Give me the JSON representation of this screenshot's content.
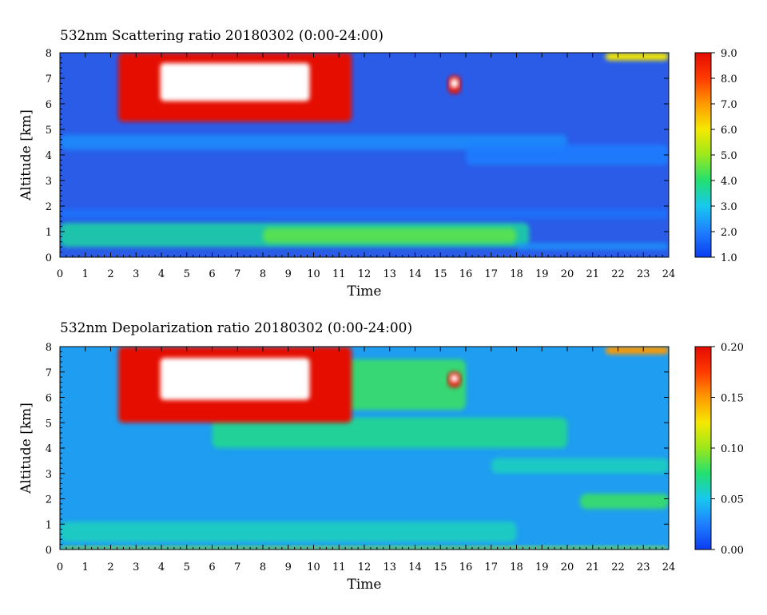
{
  "chart_data": [
    {
      "type": "heatmap",
      "title": "532nm Scattering ratio  20180302 (0:00-24:00)",
      "xlabel": "Time",
      "ylabel": "Altitude [km]",
      "xlim": [
        0,
        24
      ],
      "ylim": [
        0,
        8
      ],
      "x_ticks": [
        "0",
        "1",
        "2",
        "3",
        "4",
        "5",
        "6",
        "7",
        "8",
        "9",
        "10",
        "11",
        "12",
        "13",
        "14",
        "15",
        "16",
        "17",
        "18",
        "19",
        "20",
        "21",
        "22",
        "23",
        "24"
      ],
      "y_ticks": [
        "0",
        "1",
        "2",
        "3",
        "4",
        "5",
        "6",
        "7",
        "8"
      ],
      "colorbar": {
        "min": 1.0,
        "max": 9.0,
        "ticks": [
          "1.0",
          "2.0",
          "3.0",
          "4.0",
          "5.0",
          "6.0",
          "7.0",
          "8.0",
          "9.0"
        ]
      },
      "colormap": [
        "#0a3cf0",
        "#1f7fff",
        "#17c8ee",
        "#22e070",
        "#9be81c",
        "#f5e800",
        "#ff9a00",
        "#ff3b00",
        "#e40a00"
      ],
      "background_color": "#2a5ce8",
      "saturated_color": "#ffffff",
      "features": [
        {
          "kind": "band",
          "x": [
            0,
            18.5
          ],
          "y": [
            0.4,
            1.35
          ],
          "value": 3.6
        },
        {
          "kind": "band",
          "x": [
            8,
            18
          ],
          "y": [
            0.55,
            1.15
          ],
          "value": 4.5
        },
        {
          "kind": "band",
          "x": [
            18,
            24
          ],
          "y": [
            0.3,
            0.55
          ],
          "value": 2.3
        },
        {
          "kind": "band",
          "x": [
            0,
            24
          ],
          "y": [
            1.5,
            1.9
          ],
          "value": 1.8
        },
        {
          "kind": "band",
          "x": [
            0,
            20
          ],
          "y": [
            4.2,
            4.8
          ],
          "value": 2.2
        },
        {
          "kind": "band",
          "x": [
            16,
            24
          ],
          "y": [
            3.6,
            4.4
          ],
          "value": 2.0
        },
        {
          "kind": "cloud",
          "x": [
            2.3,
            11.5
          ],
          "y": [
            5.3,
            8.0
          ],
          "value": 9.0
        },
        {
          "kind": "cloud",
          "x": [
            15.3,
            15.8
          ],
          "y": [
            6.4,
            7.1
          ],
          "value": 9.0
        },
        {
          "kind": "cloud",
          "x": [
            21.5,
            24
          ],
          "y": [
            7.7,
            8.0
          ],
          "value": 6.0
        }
      ]
    },
    {
      "type": "heatmap",
      "title": "532nm Depolarization ratio  20180302 (0:00-24:00)",
      "xlabel": "Time",
      "ylabel": "Altitude [km]",
      "xlim": [
        0,
        24
      ],
      "ylim": [
        0,
        8
      ],
      "x_ticks": [
        "0",
        "1",
        "2",
        "3",
        "4",
        "5",
        "6",
        "7",
        "8",
        "9",
        "10",
        "11",
        "12",
        "13",
        "14",
        "15",
        "16",
        "17",
        "18",
        "19",
        "20",
        "21",
        "22",
        "23",
        "24"
      ],
      "y_ticks": [
        "0",
        "1",
        "2",
        "3",
        "4",
        "5",
        "6",
        "7",
        "8"
      ],
      "colorbar": {
        "min": 0.0,
        "max": 0.2,
        "ticks": [
          "0.00",
          "0.05",
          "0.10",
          "0.15",
          "0.20"
        ]
      },
      "colormap": [
        "#0a3cf0",
        "#1f7fff",
        "#17c8ee",
        "#22e070",
        "#9be81c",
        "#f5e800",
        "#ff9a00",
        "#ff3b00",
        "#e40a00"
      ],
      "background_color": "#1f9df0",
      "saturated_color": "#ffffff",
      "features": [
        {
          "kind": "band",
          "x": [
            0,
            24
          ],
          "y": [
            0.0,
            0.12
          ],
          "value": 0.1
        },
        {
          "kind": "band",
          "x": [
            0,
            18
          ],
          "y": [
            0.3,
            1.1
          ],
          "value": 0.06
        },
        {
          "kind": "band",
          "x": [
            6,
            20
          ],
          "y": [
            4.0,
            5.2
          ],
          "value": 0.07
        },
        {
          "kind": "band",
          "x": [
            17,
            24
          ],
          "y": [
            3.0,
            3.6
          ],
          "value": 0.06
        },
        {
          "kind": "band",
          "x": [
            20.5,
            24
          ],
          "y": [
            1.6,
            2.2
          ],
          "value": 0.08
        },
        {
          "kind": "band",
          "x": [
            9,
            16
          ],
          "y": [
            5.5,
            7.5
          ],
          "value": 0.08
        },
        {
          "kind": "cloud",
          "x": [
            2.3,
            11.5
          ],
          "y": [
            5.0,
            8.0
          ],
          "value": 0.2
        },
        {
          "kind": "cloud",
          "x": [
            15.3,
            15.8
          ],
          "y": [
            6.4,
            7.0
          ],
          "value": 0.2
        },
        {
          "kind": "cloud",
          "x": [
            21.5,
            24
          ],
          "y": [
            7.7,
            8.0
          ],
          "value": 0.15
        }
      ]
    }
  ]
}
